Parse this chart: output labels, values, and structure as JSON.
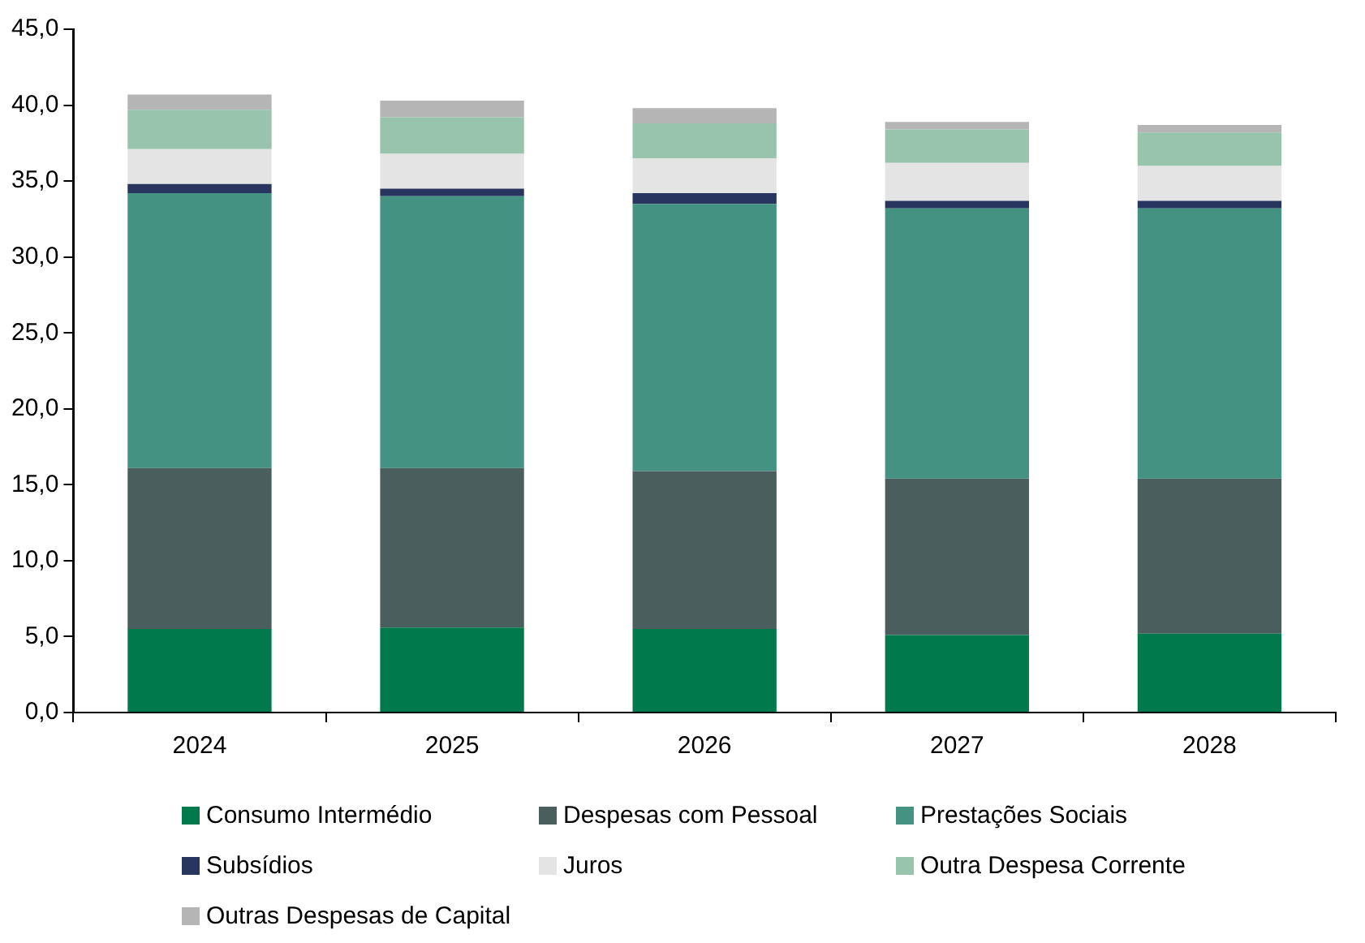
{
  "chart_data": {
    "type": "bar",
    "stacked": true,
    "categories": [
      "2024",
      "2025",
      "2026",
      "2027",
      "2028"
    ],
    "series": [
      {
        "name": "Consumo Intermédio",
        "color": "#007a4d",
        "values": [
          5.5,
          5.6,
          5.5,
          5.1,
          5.2
        ]
      },
      {
        "name": "Despesas com Pessoal",
        "color": "#4a5e5e",
        "values": [
          10.6,
          10.5,
          10.4,
          10.3,
          10.2
        ]
      },
      {
        "name": "Prestações Sociais",
        "color": "#439282",
        "values": [
          18.1,
          17.9,
          17.6,
          17.8,
          17.8
        ]
      },
      {
        "name": "Subsídios",
        "color": "#27355f",
        "values": [
          0.6,
          0.5,
          0.7,
          0.5,
          0.5
        ]
      },
      {
        "name": "Juros",
        "color": "#e4e4e4",
        "values": [
          2.3,
          2.3,
          2.3,
          2.5,
          2.3
        ]
      },
      {
        "name": "Outra Despesa Corrente",
        "color": "#98c3ad",
        "values": [
          2.6,
          2.4,
          2.3,
          2.2,
          2.2
        ]
      },
      {
        "name": "Outras Despesas de Capital",
        "color": "#b5b5b5",
        "values": [
          1.0,
          1.1,
          1.0,
          0.5,
          0.5
        ]
      }
    ],
    "ylim": [
      0,
      45
    ],
    "yticks": [
      {
        "value": 0,
        "label": "0,0"
      },
      {
        "value": 5,
        "label": "5,0"
      },
      {
        "value": 10,
        "label": "10,0"
      },
      {
        "value": 15,
        "label": "15,0"
      },
      {
        "value": 20,
        "label": "20,0"
      },
      {
        "value": 25,
        "label": "25,0"
      },
      {
        "value": 30,
        "label": "30,0"
      },
      {
        "value": 35,
        "label": "35,0"
      },
      {
        "value": 40,
        "label": "40,0"
      },
      {
        "value": 45,
        "label": "45,0"
      }
    ],
    "grid": false,
    "legend": "bottom"
  }
}
